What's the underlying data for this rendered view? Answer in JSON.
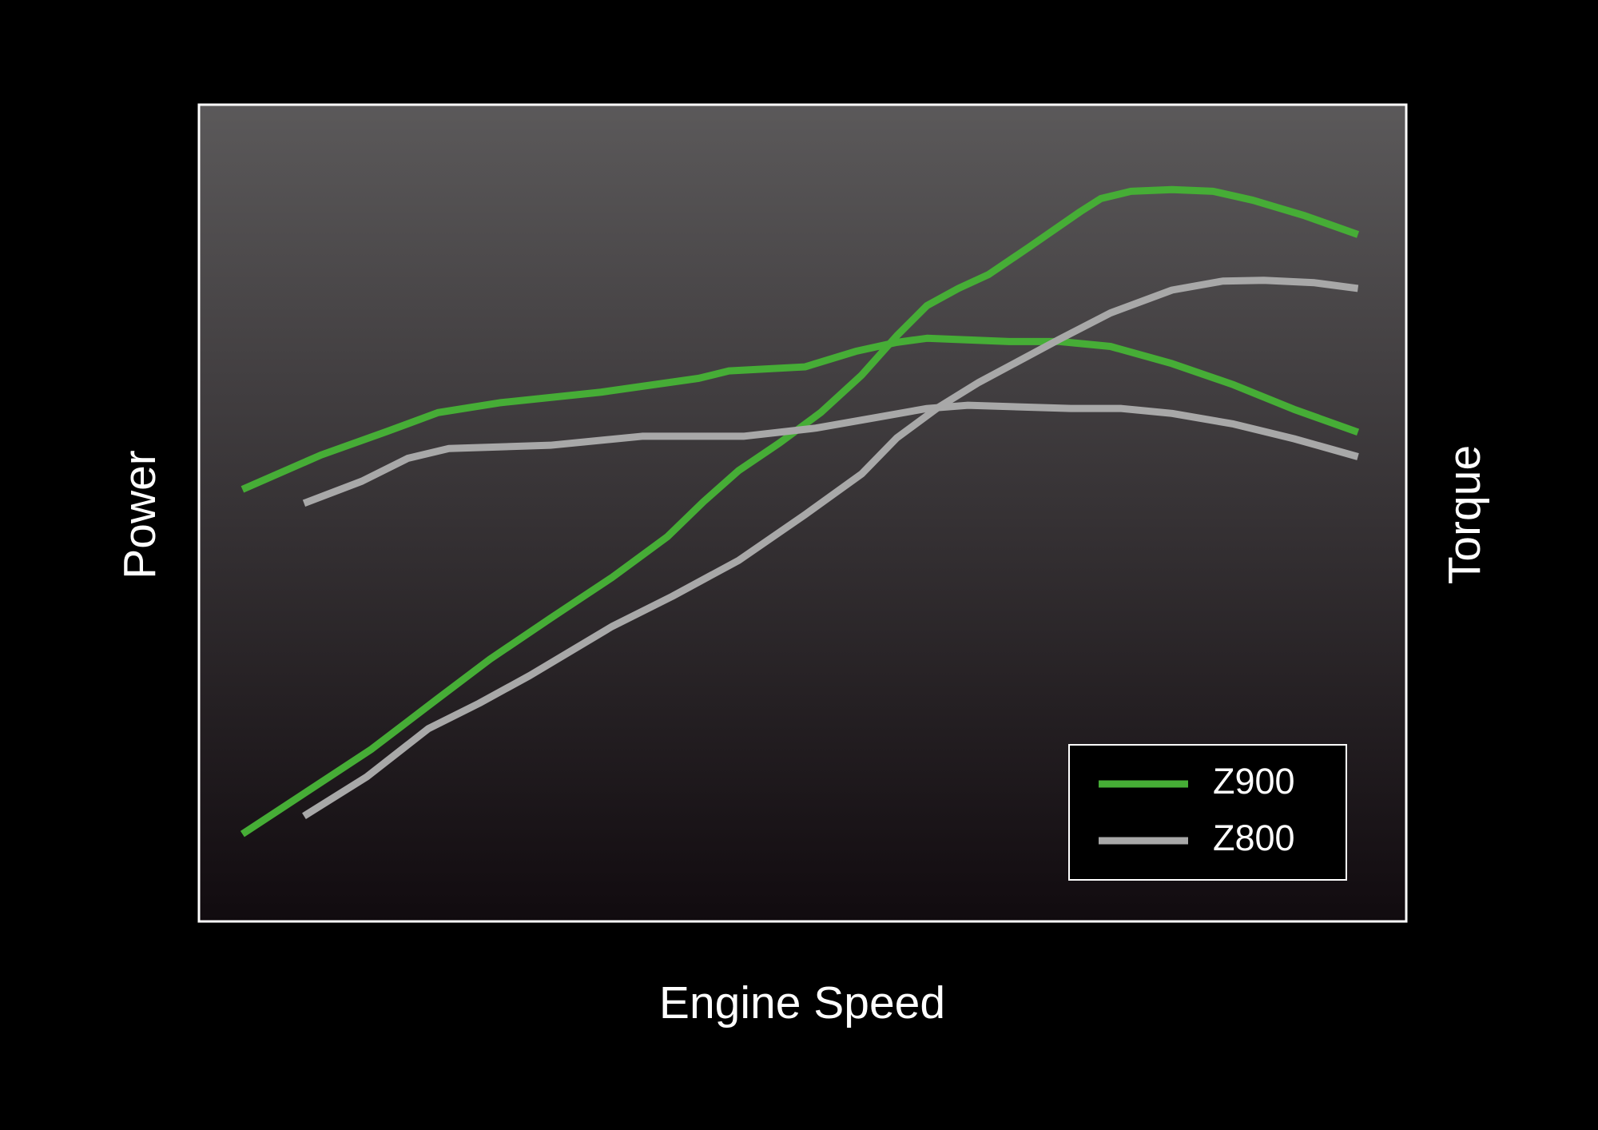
{
  "chart_data": {
    "type": "line",
    "xlabel": "Engine Speed",
    "ylabel": "Power",
    "y2label": "Torque",
    "xlim": [
      0,
      100
    ],
    "ylim": [
      0,
      100
    ],
    "y2lim": [
      0,
      100
    ],
    "series": [
      {
        "name": "Z900",
        "color": "#46ad36",
        "axis": "y",
        "x": [
          3.6,
          10.5,
          14.3,
          19.8,
          24.1,
          29.1,
          34.2,
          38.8,
          41.8,
          44.7,
          48.1,
          51.5,
          54.9,
          57.8,
          60.3,
          62.9,
          65.4,
          68.8,
          73.0,
          74.7,
          77.2,
          80.6,
          84.0,
          87.3,
          91.6,
          96.0
        ],
        "values": [
          10.7,
          17.4,
          21.1,
          27.3,
          32.1,
          37.1,
          42.1,
          47.1,
          51.4,
          55.2,
          58.6,
          62.3,
          66.9,
          71.7,
          75.4,
          77.5,
          79.2,
          82.6,
          86.9,
          88.5,
          89.4,
          89.6,
          89.4,
          88.3,
          86.4,
          84.1
        ]
      },
      {
        "name": "Z900",
        "color": "#46ad36",
        "axis": "y2",
        "x": [
          3.6,
          10.1,
          15.6,
          19.8,
          24.9,
          33.3,
          41.4,
          43.9,
          50.2,
          54.4,
          57.8,
          60.3,
          67.1,
          71.3,
          75.5,
          80.6,
          85.7,
          90.7,
          96.0
        ],
        "values": [
          52.9,
          57.1,
          60.0,
          62.3,
          63.5,
          64.8,
          66.5,
          67.4,
          67.9,
          69.8,
          70.9,
          71.4,
          71.0,
          71.0,
          70.4,
          68.3,
          65.7,
          62.7,
          59.9
        ]
      },
      {
        "name": "Z800",
        "color": "#a8a8a8",
        "axis": "y",
        "x": [
          8.7,
          13.9,
          19.0,
          23.2,
          27.4,
          34.2,
          39.2,
          44.7,
          50.2,
          54.9,
          57.8,
          61.2,
          64.6,
          71.3,
          75.5,
          80.6,
          84.8,
          88.2,
          92.4,
          96.0
        ],
        "values": [
          12.9,
          17.7,
          23.6,
          26.7,
          30.1,
          36.1,
          39.8,
          44.2,
          49.8,
          54.8,
          59.2,
          62.9,
          66.0,
          71.3,
          74.5,
          77.3,
          78.4,
          78.5,
          78.2,
          77.5
        ]
      },
      {
        "name": "Z800",
        "color": "#a8a8a8",
        "axis": "y2",
        "x": [
          8.7,
          13.5,
          17.3,
          20.7,
          29.1,
          36.7,
          45.1,
          51.1,
          56.1,
          60.3,
          63.7,
          72.2,
          76.4,
          80.6,
          85.7,
          90.7,
          96.0
        ],
        "values": [
          51.2,
          53.9,
          56.7,
          57.9,
          58.3,
          59.4,
          59.4,
          60.4,
          61.7,
          62.8,
          63.2,
          62.8,
          62.8,
          62.2,
          60.9,
          59.1,
          56.9
        ]
      }
    ]
  }
}
